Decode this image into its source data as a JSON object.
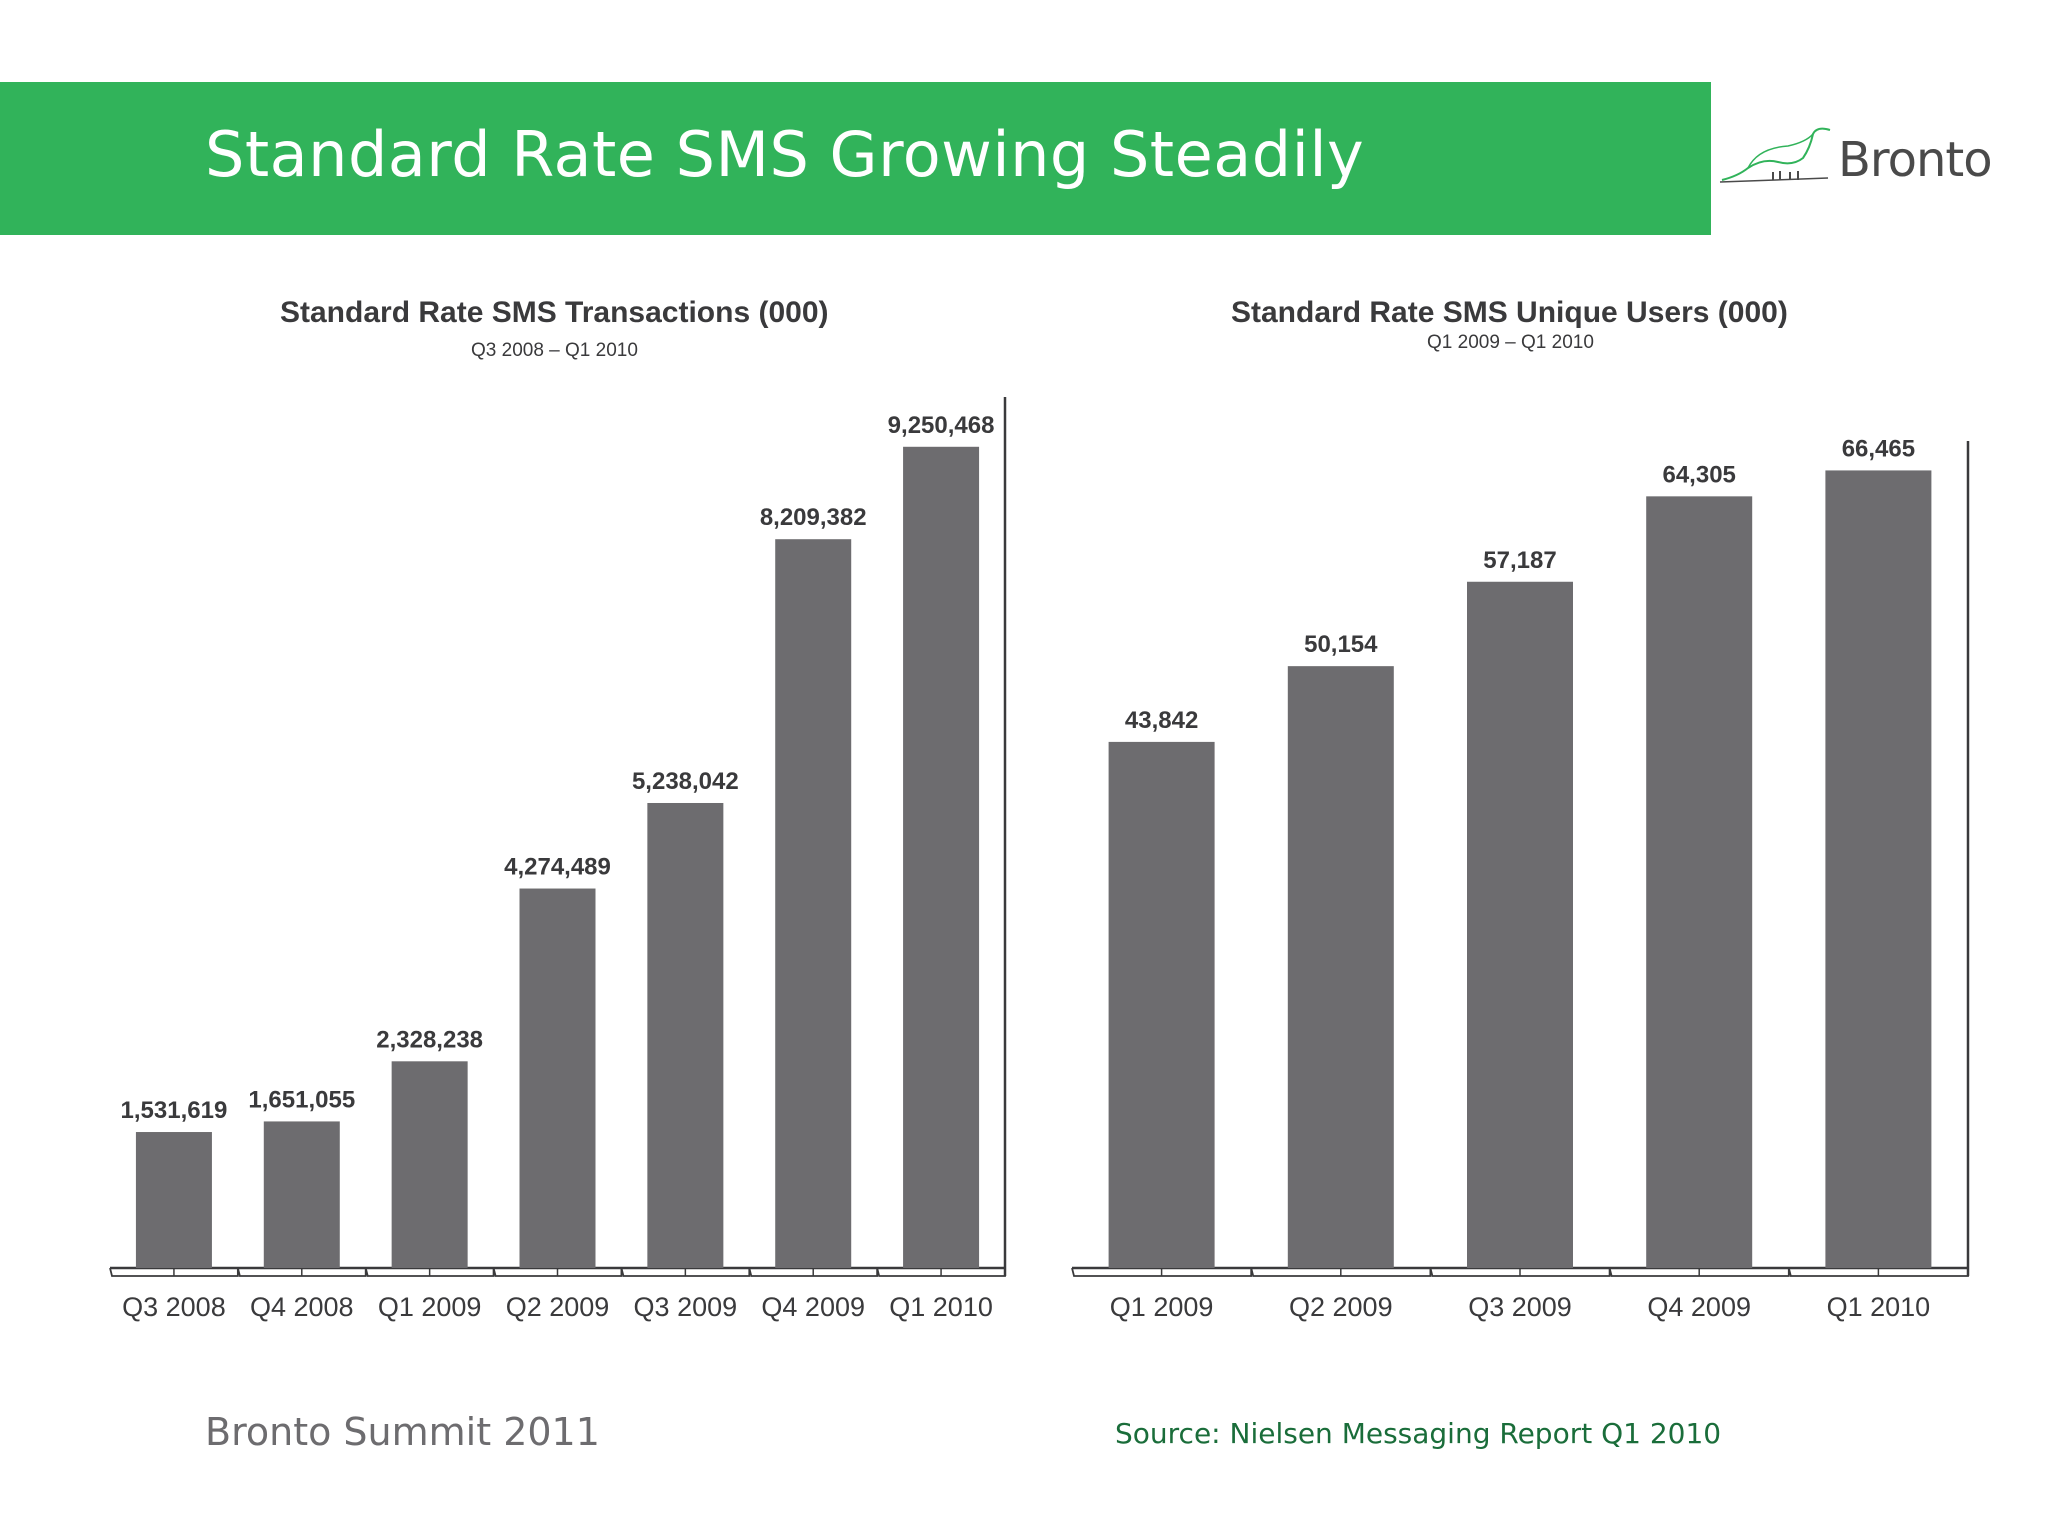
{
  "slide": {
    "title": "Standard Rate SMS Growing Steadily",
    "logo_text": "Bronto",
    "footer_left": "Bronto Summit 2011",
    "footer_right": "Source: Nielsen Messaging Report Q1 2010",
    "banner_color": "#31b35a",
    "bar_color": "#6d6c6f"
  },
  "chart_data": [
    {
      "type": "bar",
      "title": "Standard Rate SMS Transactions (000)",
      "subtitle": "Q3 2008 – Q1 2010",
      "categories": [
        "Q3 2008",
        "Q4 2008",
        "Q1 2009",
        "Q2 2009",
        "Q3 2009",
        "Q4 2009",
        "Q1 2010"
      ],
      "values": [
        1531619,
        1651055,
        2328238,
        4274489,
        5238042,
        8209382,
        9250468
      ],
      "value_labels": [
        "1,531,619",
        "1,651,055",
        "2,328,238",
        "4,274,489",
        "5,238,042",
        "8,209,382",
        "9,250,468"
      ],
      "xlabel": "",
      "ylabel": "",
      "ylim": [
        0,
        9800000
      ]
    },
    {
      "type": "bar",
      "title": "Standard Rate SMS Unique Users (000)",
      "subtitle": "Q1 2009 – Q1 2010",
      "categories": [
        "Q1 2009",
        "Q2 2009",
        "Q3 2009",
        "Q4 2009",
        "Q1 2010"
      ],
      "values": [
        43842,
        50154,
        57187,
        64305,
        66465
      ],
      "value_labels": [
        "43,842",
        "50,154",
        "57,187",
        "64,305",
        "66,465"
      ],
      "xlabel": "",
      "ylabel": "",
      "ylim": [
        0,
        70000
      ]
    }
  ]
}
